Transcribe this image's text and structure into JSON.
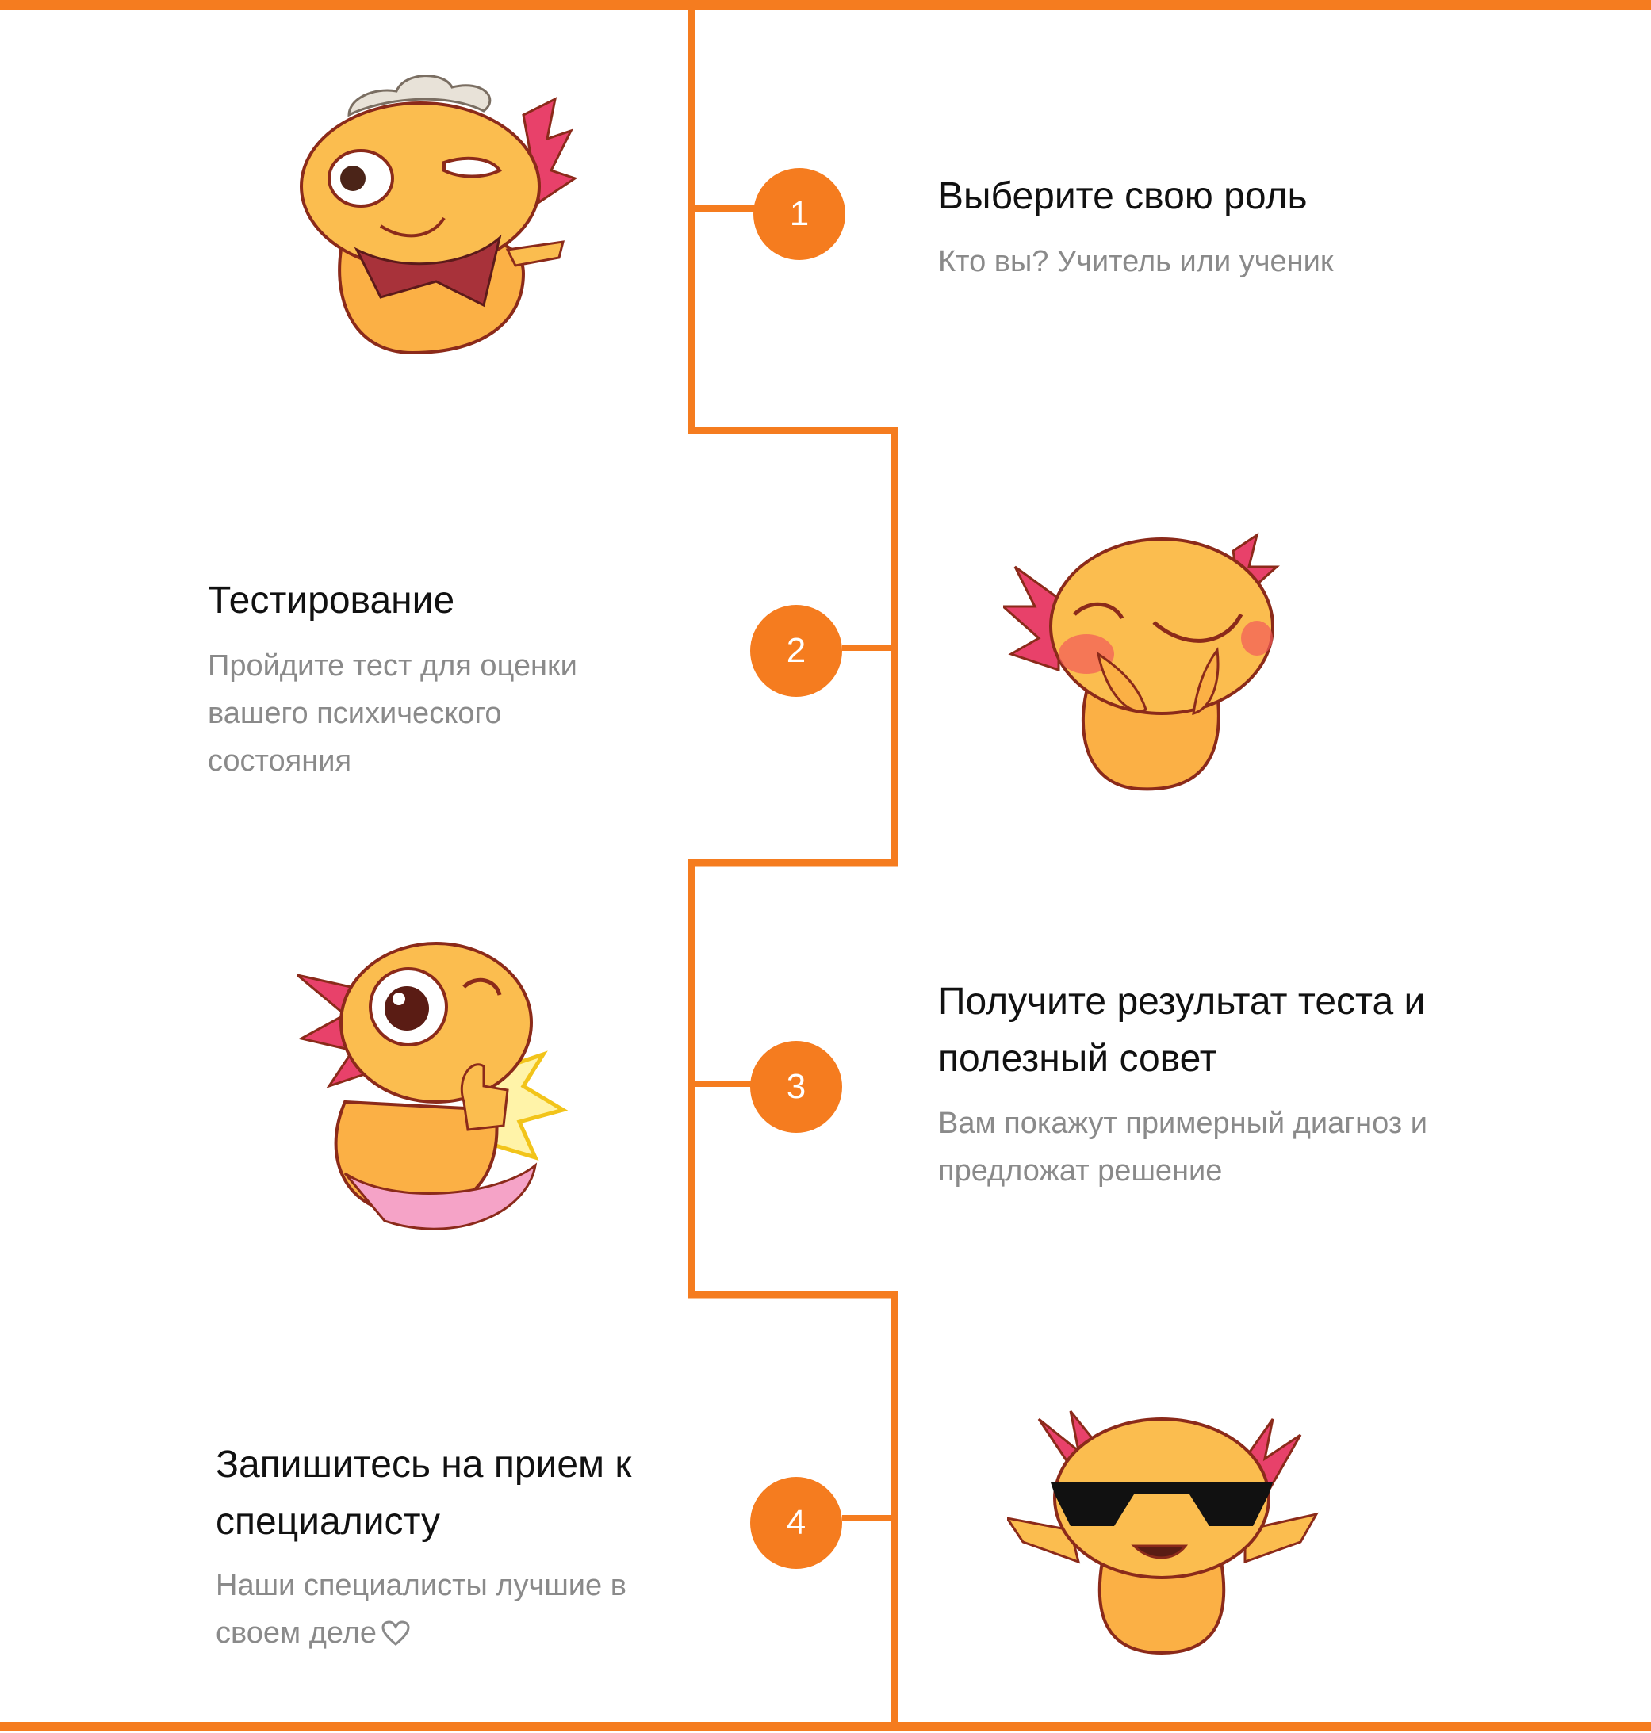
{
  "colors": {
    "accent": "#f57c1f",
    "title_text": "#111111",
    "desc_text": "#8a8a8a",
    "background": "#ffffff"
  },
  "steps": [
    {
      "number": "1",
      "title": "Выберите свою роль",
      "description": "Кто вы? Учитель или ученик",
      "sticker": "axolotl-cowboy-sticker"
    },
    {
      "number": "2",
      "title": "Тестирование",
      "description": "Пройдите тест для оценки вашего психического состояния",
      "sticker": "axolotl-blushing-sticker"
    },
    {
      "number": "3",
      "title": "Получите результат теста и полезный совет",
      "description": "Вам покажут примерный диагноз и предложат решение",
      "sticker": "axolotl-thumbs-up-sticker"
    },
    {
      "number": "4",
      "title": "Запишитесь на прием к специалисту",
      "description": "Наши специалисты лучшие в своем деле",
      "description_icon": "heart-icon",
      "sticker": "axolotl-sunglasses-sticker"
    }
  ]
}
